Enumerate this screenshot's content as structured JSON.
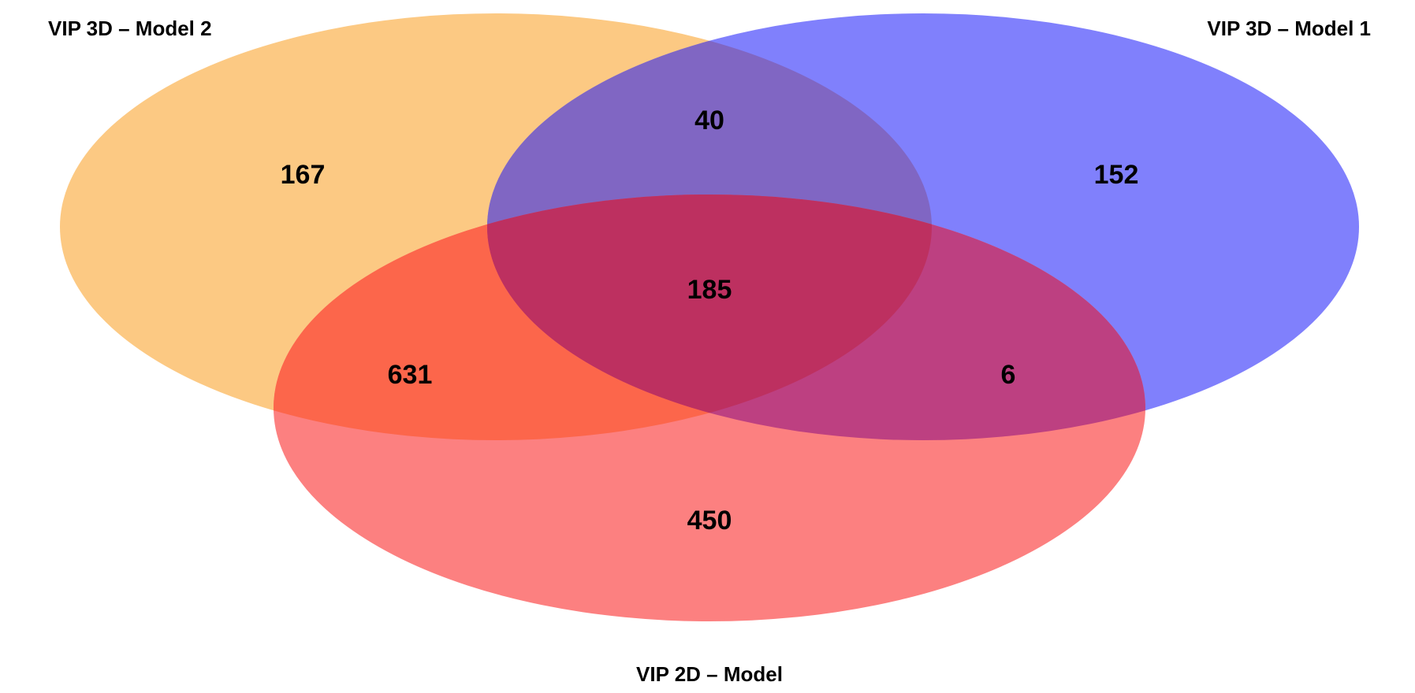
{
  "sets": [
    {
      "key": "model2",
      "label": "VIP 3D – Model 2",
      "color": "#fcc983"
    },
    {
      "key": "model1",
      "label": "VIP 3D – Model 1",
      "color": "#8080fc"
    },
    {
      "key": "model2d",
      "label": "VIP 2D – Model",
      "color": "#fc8080"
    }
  ],
  "regions": {
    "model2_only": "167",
    "model1_only": "152",
    "model2d_only": "450",
    "model2_model1": "40",
    "model2_model2d": "631",
    "model1_model2d": "6",
    "all_three": "185"
  },
  "overlap_colors": {
    "model2_model1": "#8066c3",
    "model2_model2d": "#fc664b",
    "model1_model2d": "#bd4081",
    "all_three": "#bd3060"
  }
}
